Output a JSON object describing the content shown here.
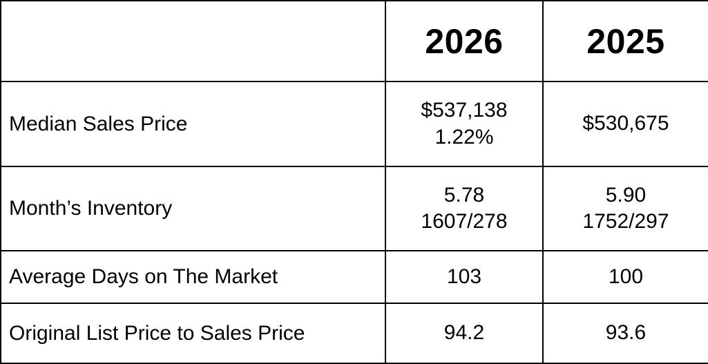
{
  "colors": {
    "background": "#ffffff",
    "border": "#000000",
    "text": "#000000"
  },
  "table": {
    "header": {
      "metric": "",
      "col_2026": "2026",
      "col_2025": "2025"
    },
    "rows": [
      {
        "label": "Median Sales Price",
        "v2026": [
          "$537,138",
          "1.22%"
        ],
        "v2025": [
          "$530,675"
        ]
      },
      {
        "label": "Month’s Inventory",
        "v2026": [
          "5.78",
          "1607/278"
        ],
        "v2025": [
          "5.90",
          "1752/297"
        ]
      },
      {
        "label": "Average Days on The Market",
        "v2026": [
          "103"
        ],
        "v2025": [
          "100"
        ]
      },
      {
        "label": "Original List Price to Sales Price",
        "v2026": [
          "94.2"
        ],
        "v2025": [
          "93.6"
        ]
      }
    ]
  },
  "chart_data": {
    "type": "table",
    "title": "",
    "columns": [
      "",
      "2026",
      "2025"
    ],
    "rows": [
      [
        "Median Sales Price",
        "$537,138 / 1.22%",
        "$530,675"
      ],
      [
        "Month’s Inventory",
        "5.78 / 1607/278",
        "5.90 / 1752/297"
      ],
      [
        "Average Days on The Market",
        "103",
        "100"
      ],
      [
        "Original List Price to Sales Price",
        "94.2",
        "93.6"
      ]
    ],
    "layout_hints": {
      "grid": "on",
      "header_row_bold": true,
      "first_column_align": "left",
      "value_columns_align": "center"
    }
  }
}
